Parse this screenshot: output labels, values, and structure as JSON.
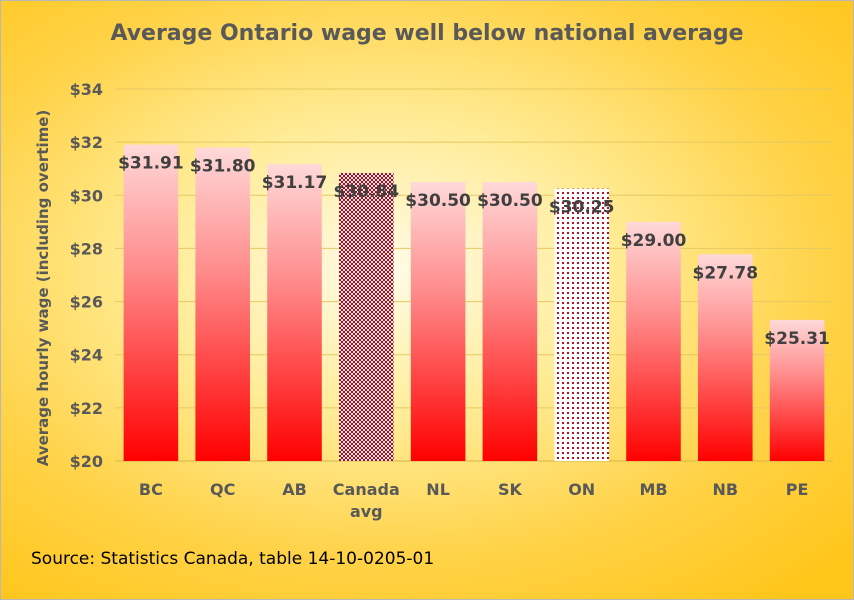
{
  "chart_data": {
    "type": "bar",
    "title": "Average Ontario wage well below national average",
    "xlabel": "",
    "ylabel": "Average hourly wage (including overtime)",
    "ylim": [
      20,
      34
    ],
    "yticks": [
      "$20",
      "$22",
      "$24",
      "$26",
      "$28",
      "$30",
      "$32",
      "$34"
    ],
    "yticks_values": [
      20,
      22,
      24,
      26,
      28,
      30,
      32,
      34
    ],
    "categories": [
      [
        "BC"
      ],
      [
        "QC"
      ],
      [
        "AB"
      ],
      [
        "Canada",
        "avg"
      ],
      [
        "NL"
      ],
      [
        "SK"
      ],
      [
        "ON"
      ],
      [
        "MB"
      ],
      [
        "NB"
      ],
      [
        "PE"
      ]
    ],
    "values": [
      31.91,
      31.8,
      31.17,
      30.84,
      30.5,
      30.5,
      30.25,
      29.0,
      27.78,
      25.31
    ],
    "data_labels": [
      "$31.91",
      "$31.80",
      "$31.17",
      "$30.84",
      "$30.50",
      "$30.50",
      "$30.25",
      "$29.00",
      "$27.78",
      "$25.31"
    ],
    "bar_styles": [
      "gradient",
      "gradient",
      "gradient",
      "dotted-dark",
      "gradient",
      "gradient",
      "dotted-light",
      "gradient",
      "gradient",
      "gradient"
    ],
    "grid": true,
    "legend": "none",
    "colors": {
      "bar_top": "#ffd7d7",
      "bar_bottom": "#ff0000",
      "pattern": "#a0101e",
      "text": "#595959",
      "grid": "#e6c860"
    }
  },
  "source": "Source: Statistics Canada, table 14-10-0205-01"
}
